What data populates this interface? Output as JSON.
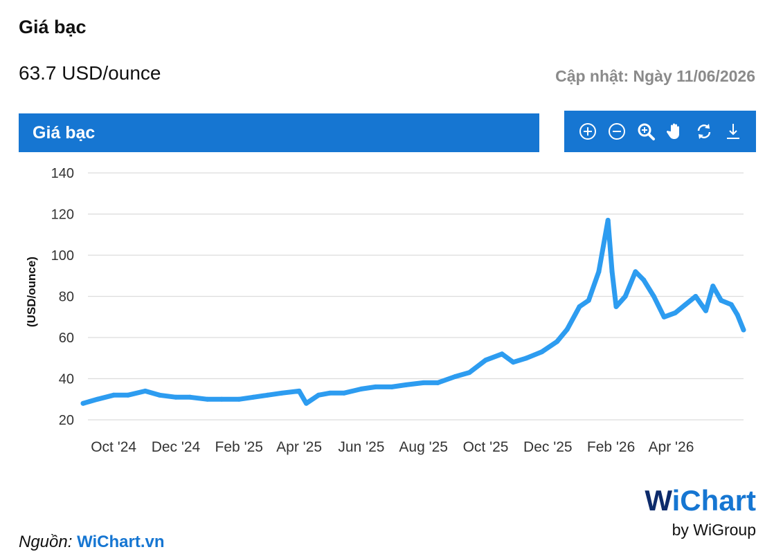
{
  "page": {
    "title": "Giá bạc",
    "price": "63.7 USD/ounce",
    "updated": "Cập nhật: Ngày 11/06/2026"
  },
  "chart_header": {
    "title": "Giá bạc"
  },
  "toolbar": {
    "icons": [
      "zoom-in-icon",
      "zoom-out-icon",
      "magnifier-zoom-icon",
      "pan-hand-icon",
      "reset-icon",
      "download-icon"
    ]
  },
  "footer": {
    "source_label": "Nguồn:",
    "source_link": "WiChart.vn",
    "brand_w": "W",
    "brand_rest": "iChart",
    "brand_by": "by WiGroup"
  },
  "colors": {
    "accent": "#1676d2",
    "line": "#2d9cf0",
    "brand_dark": "#0d2b6b"
  },
  "chart_data": {
    "type": "line",
    "ylabel": "(USD/ounce)",
    "xlabel": "",
    "ylim": [
      20,
      140
    ],
    "yticks": [
      20,
      40,
      60,
      80,
      100,
      120,
      140
    ],
    "grid": true,
    "xticks": [
      "Oct '24",
      "Dec '24",
      "Feb '25",
      "Apr '25",
      "Jun '25",
      "Aug '25",
      "Oct '25",
      "Dec '25",
      "Feb '26",
      "Apr '26"
    ],
    "xtick_dates": [
      "2024-10-01",
      "2024-12-01",
      "2025-02-01",
      "2025-04-01",
      "2025-06-01",
      "2025-08-01",
      "2025-10-01",
      "2025-12-01",
      "2026-02-01",
      "2026-04-01"
    ],
    "x_range": [
      "2024-09-01",
      "2026-06-11"
    ],
    "series": [
      {
        "x": [
          "2024-09-01",
          "2024-09-15",
          "2024-10-01",
          "2024-10-15",
          "2024-11-01",
          "2024-11-15",
          "2024-12-01",
          "2024-12-15",
          "2025-01-01",
          "2025-01-15",
          "2025-02-01",
          "2025-02-15",
          "2025-03-01",
          "2025-03-15",
          "2025-04-01",
          "2025-04-08",
          "2025-04-20",
          "2025-05-01",
          "2025-05-15",
          "2025-06-01",
          "2025-06-15",
          "2025-07-01",
          "2025-07-15",
          "2025-08-01",
          "2025-08-15",
          "2025-09-01",
          "2025-09-15",
          "2025-10-01",
          "2025-10-17",
          "2025-10-28",
          "2025-11-10",
          "2025-11-25",
          "2025-12-10",
          "2025-12-20",
          "2026-01-01",
          "2026-01-10",
          "2026-01-20",
          "2026-01-29",
          "2026-02-02",
          "2026-02-06",
          "2026-02-15",
          "2026-02-25",
          "2026-03-05",
          "2026-03-15",
          "2026-03-25",
          "2026-04-05",
          "2026-04-15",
          "2026-04-25",
          "2026-05-05",
          "2026-05-12",
          "2026-05-20",
          "2026-05-30",
          "2026-06-05",
          "2026-06-11"
        ],
        "values": [
          28,
          30,
          32,
          32,
          34,
          32,
          31,
          31,
          30,
          30,
          30,
          31,
          32,
          33,
          34,
          28,
          32,
          33,
          33,
          35,
          36,
          36,
          37,
          38,
          38,
          41,
          43,
          49,
          52,
          48,
          50,
          53,
          58,
          64,
          75,
          78,
          92,
          117,
          92,
          75,
          80,
          92,
          88,
          80,
          70,
          72,
          76,
          80,
          73,
          85,
          78,
          76,
          71,
          63.7
        ]
      }
    ]
  }
}
